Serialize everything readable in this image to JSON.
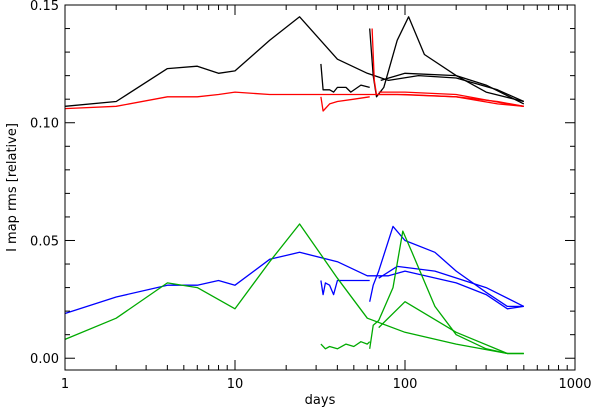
{
  "chart_data": {
    "type": "line",
    "title": "",
    "xlabel": "days",
    "ylabel": "I map rms [relative]",
    "xscale": "log",
    "xlim": [
      1,
      1000
    ],
    "ylim": [
      -0.005,
      0.15
    ],
    "grid": false,
    "legend": "none",
    "x_ticks": [
      {
        "value": 1,
        "label": "1"
      },
      {
        "value": 10,
        "label": "10"
      },
      {
        "value": 100,
        "label": "100"
      },
      {
        "value": 1000,
        "label": "1000"
      }
    ],
    "y_ticks": [
      {
        "value": 0.0,
        "label": "0.00"
      },
      {
        "value": 0.05,
        "label": "0.05"
      },
      {
        "value": 0.1,
        "label": "0.10"
      },
      {
        "value": 0.15,
        "label": "0.15"
      }
    ],
    "series": [
      {
        "color": "#000000",
        "points": [
          [
            1,
            0.107
          ],
          [
            2,
            0.109
          ],
          [
            4,
            0.123
          ],
          [
            6,
            0.124
          ],
          [
            8,
            0.121
          ],
          [
            10,
            0.122
          ],
          [
            16,
            0.135
          ],
          [
            24,
            0.145
          ],
          [
            40,
            0.127
          ],
          [
            60,
            0.121
          ],
          [
            80,
            0.118
          ],
          [
            120,
            0.12
          ],
          [
            200,
            0.119
          ],
          [
            350,
            0.114
          ],
          [
            500,
            0.109
          ]
        ]
      },
      {
        "color": "#000000",
        "points": [
          [
            32,
            0.125
          ],
          [
            33,
            0.114
          ],
          [
            36,
            0.114
          ],
          [
            38,
            0.113
          ],
          [
            40,
            0.115
          ],
          [
            45,
            0.115
          ],
          [
            48,
            0.113
          ],
          [
            55,
            0.116
          ],
          [
            62,
            0.115
          ]
        ]
      },
      {
        "color": "#000000",
        "points": [
          [
            62,
            0.14
          ],
          [
            65,
            0.12
          ],
          [
            68,
            0.111
          ],
          [
            75,
            0.115
          ],
          [
            90,
            0.135
          ],
          [
            105,
            0.145
          ],
          [
            130,
            0.129
          ],
          [
            200,
            0.12
          ],
          [
            300,
            0.113
          ],
          [
            500,
            0.109
          ]
        ]
      },
      {
        "color": "#000000",
        "points": [
          [
            72,
            0.118
          ],
          [
            100,
            0.121
          ],
          [
            200,
            0.12
          ],
          [
            300,
            0.116
          ],
          [
            500,
            0.108
          ]
        ]
      },
      {
        "color": "#ff0000",
        "points": [
          [
            1,
            0.106
          ],
          [
            2,
            0.107
          ],
          [
            4,
            0.111
          ],
          [
            6,
            0.111
          ],
          [
            8,
            0.112
          ],
          [
            10,
            0.113
          ],
          [
            16,
            0.112
          ],
          [
            30,
            0.112
          ],
          [
            60,
            0.112
          ],
          [
            100,
            0.112
          ],
          [
            200,
            0.111
          ],
          [
            350,
            0.109
          ],
          [
            500,
            0.107
          ]
        ]
      },
      {
        "color": "#ff0000",
        "points": [
          [
            32,
            0.111
          ],
          [
            33,
            0.105
          ],
          [
            36,
            0.108
          ],
          [
            40,
            0.109
          ],
          [
            50,
            0.11
          ],
          [
            62,
            0.111
          ]
        ]
      },
      {
        "color": "#ff0000",
        "points": [
          [
            64,
            0.14
          ],
          [
            66,
            0.118
          ],
          [
            68,
            0.112
          ],
          [
            90,
            0.112
          ],
          [
            200,
            0.111
          ],
          [
            350,
            0.108
          ],
          [
            500,
            0.107
          ]
        ]
      },
      {
        "color": "#ff0000",
        "points": [
          [
            70,
            0.113
          ],
          [
            100,
            0.113
          ],
          [
            200,
            0.112
          ],
          [
            400,
            0.108
          ],
          [
            500,
            0.107
          ]
        ]
      },
      {
        "color": "#0000ff",
        "points": [
          [
            1,
            0.019
          ],
          [
            2,
            0.026
          ],
          [
            4,
            0.031
          ],
          [
            6,
            0.031
          ],
          [
            8,
            0.033
          ],
          [
            10,
            0.031
          ],
          [
            16,
            0.042
          ],
          [
            24,
            0.045
          ],
          [
            40,
            0.041
          ],
          [
            60,
            0.035
          ],
          [
            80,
            0.035
          ],
          [
            100,
            0.037
          ],
          [
            200,
            0.032
          ],
          [
            300,
            0.027
          ],
          [
            400,
            0.021
          ],
          [
            500,
            0.022
          ]
        ]
      },
      {
        "color": "#0000ff",
        "points": [
          [
            32,
            0.033
          ],
          [
            33,
            0.027
          ],
          [
            34,
            0.032
          ],
          [
            36,
            0.031
          ],
          [
            38,
            0.027
          ],
          [
            40,
            0.033
          ],
          [
            50,
            0.033
          ],
          [
            62,
            0.033
          ]
        ]
      },
      {
        "color": "#0000ff",
        "points": [
          [
            62,
            0.024
          ],
          [
            65,
            0.031
          ],
          [
            70,
            0.037
          ],
          [
            85,
            0.056
          ],
          [
            100,
            0.05
          ],
          [
            150,
            0.045
          ],
          [
            200,
            0.037
          ],
          [
            300,
            0.028
          ],
          [
            400,
            0.022
          ],
          [
            500,
            0.022
          ]
        ]
      },
      {
        "color": "#0000ff",
        "points": [
          [
            70,
            0.034
          ],
          [
            90,
            0.039
          ],
          [
            150,
            0.037
          ],
          [
            300,
            0.03
          ],
          [
            500,
            0.022
          ]
        ]
      },
      {
        "color": "#00aa00",
        "points": [
          [
            1,
            0.008
          ],
          [
            2,
            0.017
          ],
          [
            4,
            0.032
          ],
          [
            6,
            0.03
          ],
          [
            10,
            0.021
          ],
          [
            16,
            0.041
          ],
          [
            24,
            0.057
          ],
          [
            40,
            0.034
          ],
          [
            60,
            0.017
          ],
          [
            100,
            0.011
          ],
          [
            200,
            0.006
          ],
          [
            400,
            0.002
          ],
          [
            500,
            0.002
          ]
        ]
      },
      {
        "color": "#00aa00",
        "points": [
          [
            32,
            0.006
          ],
          [
            34,
            0.004
          ],
          [
            36,
            0.005
          ],
          [
            40,
            0.004
          ],
          [
            45,
            0.006
          ],
          [
            50,
            0.005
          ],
          [
            55,
            0.007
          ],
          [
            60,
            0.006
          ],
          [
            62,
            0.007
          ]
        ]
      },
      {
        "color": "#00aa00",
        "points": [
          [
            62,
            0.004
          ],
          [
            65,
            0.014
          ],
          [
            70,
            0.016
          ],
          [
            85,
            0.03
          ],
          [
            97,
            0.054
          ],
          [
            110,
            0.045
          ],
          [
            150,
            0.022
          ],
          [
            200,
            0.01
          ],
          [
            300,
            0.004
          ],
          [
            400,
            0.002
          ],
          [
            500,
            0.002
          ]
        ]
      },
      {
        "color": "#00aa00",
        "points": [
          [
            70,
            0.013
          ],
          [
            100,
            0.024
          ],
          [
            200,
            0.011
          ],
          [
            400,
            0.002
          ],
          [
            500,
            0.002
          ]
        ]
      }
    ]
  }
}
